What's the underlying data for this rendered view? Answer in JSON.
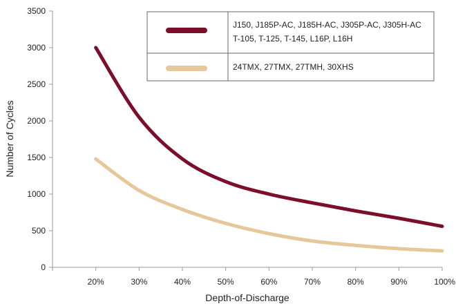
{
  "chart_data": {
    "type": "line",
    "xlabel": "Depth-of-Discharge",
    "ylabel": "Number of Cycles",
    "x": [
      20,
      30,
      40,
      50,
      60,
      70,
      80,
      90,
      100
    ],
    "x_tick_labels": [
      "20%",
      "30%",
      "40%",
      "50%",
      "60%",
      "70%",
      "80%",
      "90%",
      "100%"
    ],
    "xlim": [
      10,
      100
    ],
    "ylim": [
      0,
      3500
    ],
    "y_ticks": [
      0,
      500,
      1000,
      1500,
      2000,
      2500,
      3000,
      3500
    ],
    "y_tick_labels": [
      "0",
      "500",
      "1000",
      "1500",
      "2000",
      "2500",
      "3000",
      "3500"
    ],
    "grid": false,
    "legend_position": "top-right",
    "series": [
      {
        "label_lines": [
          "J150, J185P-AC, J185H-AC, J305P-AC, J305H-AC",
          "T-105, T-125, T-145, L16P, L16H"
        ],
        "color": "#7b0f2b",
        "values": [
          3000,
          2050,
          1480,
          1170,
          1000,
          880,
          770,
          670,
          560
        ]
      },
      {
        "label_lines": [
          "24TMX, 27TMX, 27TMH, 30XHS"
        ],
        "color": "#e6c79a",
        "values": [
          1480,
          1050,
          790,
          600,
          460,
          360,
          300,
          255,
          225
        ]
      }
    ]
  }
}
